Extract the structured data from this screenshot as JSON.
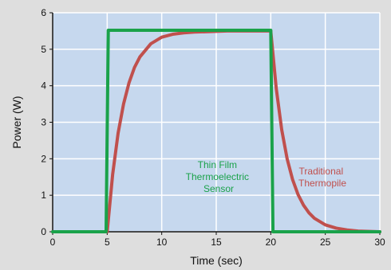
{
  "chart_data": {
    "type": "line",
    "title": "",
    "xlabel": "Time (sec)",
    "ylabel": "Power (W)",
    "xlim": [
      0,
      30
    ],
    "ylim": [
      0,
      6
    ],
    "xticks": [
      0,
      5,
      10,
      15,
      20,
      25,
      30
    ],
    "yticks": [
      0,
      1,
      2,
      3,
      4,
      5,
      6
    ],
    "grid": true,
    "colors": {
      "plot_background": "#c6d8ee",
      "gridline": "#ffffff",
      "page_background": "#dedede"
    },
    "series": [
      {
        "name": "Thin Film Thermoelectric Sensor",
        "color": "#1aa24a",
        "x": [
          0,
          4.9,
          5.1,
          20.0,
          20.2,
          30
        ],
        "y": [
          0,
          0,
          5.52,
          5.52,
          0,
          0
        ]
      },
      {
        "name": "Traditional Thermopile",
        "color": "#c0504d",
        "x": [
          0,
          5,
          5.5,
          6,
          6.5,
          7,
          7.5,
          8,
          9,
          10,
          11,
          12,
          13,
          14,
          16,
          18,
          20,
          20.5,
          21,
          21.5,
          22,
          22.5,
          23,
          23.5,
          24,
          25,
          26,
          27,
          28,
          30
        ],
        "y": [
          0,
          0,
          1.57,
          2.7,
          3.5,
          4.08,
          4.5,
          4.79,
          5.15,
          5.33,
          5.41,
          5.45,
          5.47,
          5.48,
          5.5,
          5.5,
          5.5,
          3.93,
          2.8,
          2.0,
          1.43,
          1.02,
          0.73,
          0.52,
          0.37,
          0.19,
          0.1,
          0.05,
          0.02,
          0.0
        ]
      }
    ],
    "annotations": {
      "thin_film": [
        "Thin Film",
        "Thermoelectric",
        "Sensor"
      ],
      "thermopile": [
        "Traditional",
        "Thermopile"
      ]
    }
  }
}
